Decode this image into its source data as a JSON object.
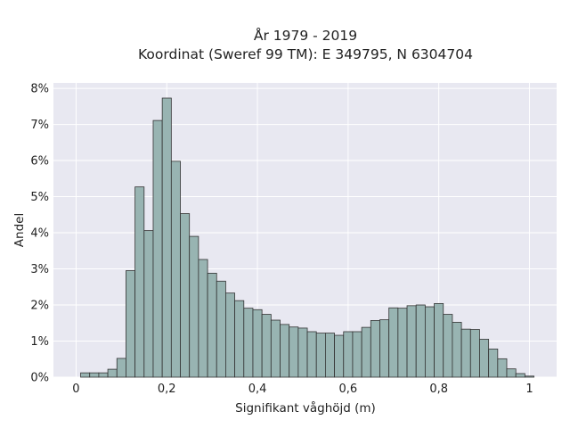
{
  "chart_data": {
    "type": "bar",
    "title_lines": [
      "År 1979 - 2019",
      "Koordinat (Sweref 99 TM): E 349795, N 6304704"
    ],
    "xlabel": "Signifikant våghöjd (m)",
    "ylabel": "Andel",
    "xlim": [
      -0.05,
      1.06
    ],
    "ylim": [
      0,
      8.15
    ],
    "x_ticks": [
      0,
      0.2,
      0.4,
      0.6,
      0.8,
      1.0
    ],
    "x_tick_labels": [
      "0",
      "0,2",
      "0,4",
      "0,6",
      "0,8",
      "1"
    ],
    "y_ticks": [
      0,
      1,
      2,
      3,
      4,
      5,
      6,
      7,
      8
    ],
    "y_tick_labels": [
      "0%",
      "1%",
      "2%",
      "3%",
      "4%",
      "5%",
      "6%",
      "7%",
      "8%"
    ],
    "bin_width": 0.02,
    "bin_starts": [
      0.01,
      0.03,
      0.05,
      0.07,
      0.09,
      0.11,
      0.13,
      0.15,
      0.17,
      0.19,
      0.21,
      0.23,
      0.25,
      0.27,
      0.29,
      0.31,
      0.33,
      0.35,
      0.37,
      0.39,
      0.41,
      0.43,
      0.45,
      0.47,
      0.49,
      0.51,
      0.53,
      0.55,
      0.57,
      0.59,
      0.61,
      0.63,
      0.65,
      0.67,
      0.69,
      0.71,
      0.73,
      0.75,
      0.77,
      0.79,
      0.81,
      0.83,
      0.85,
      0.87,
      0.89,
      0.91,
      0.93,
      0.95,
      0.97,
      0.99,
      1.01
    ],
    "values": [
      0.12,
      0.12,
      0.12,
      0.22,
      0.52,
      2.95,
      5.27,
      4.06,
      7.11,
      7.73,
      5.98,
      4.53,
      3.9,
      3.26,
      2.88,
      2.66,
      2.33,
      2.12,
      1.91,
      1.87,
      1.74,
      1.58,
      1.46,
      1.39,
      1.36,
      1.26,
      1.22,
      1.22,
      1.16,
      1.26,
      1.26,
      1.38,
      1.57,
      1.59,
      1.92,
      1.91,
      1.98,
      2.0,
      1.95,
      2.04,
      1.74,
      1.52,
      1.33,
      1.32,
      1.05,
      0.78,
      0.51,
      0.23,
      0.1,
      0.03,
      0.0
    ],
    "bar_color": "#98b4b2",
    "bar_edge_color": "#333333",
    "plot_background": "#e8e8f1",
    "grid_color": "#ffffff",
    "grid": true
  }
}
